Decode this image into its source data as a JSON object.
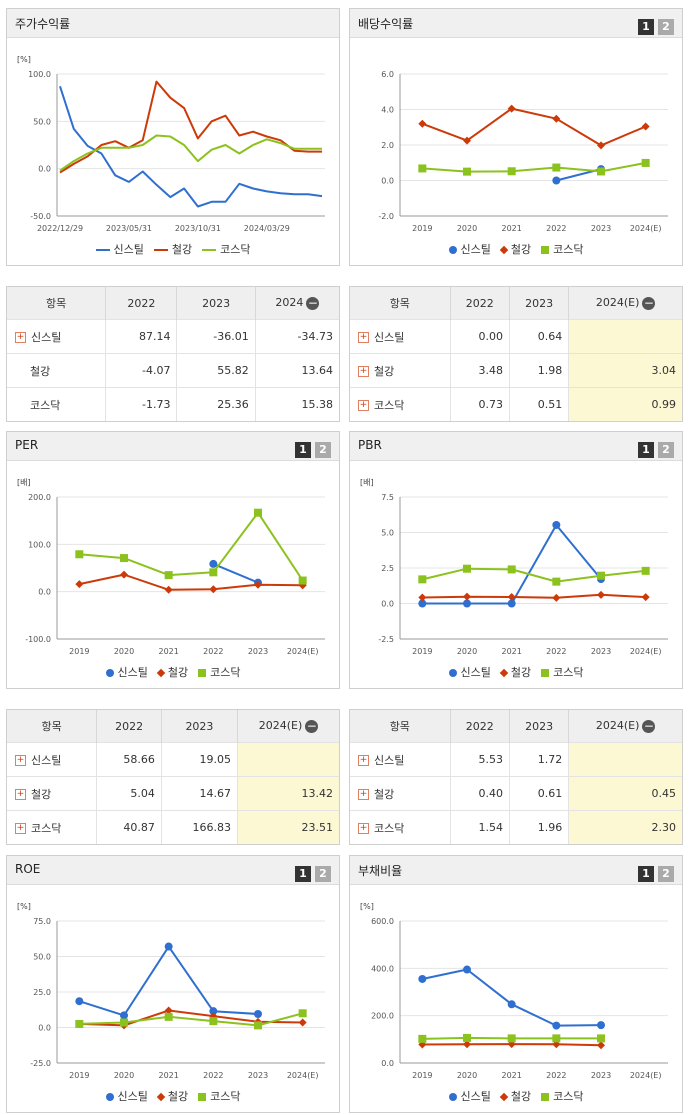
{
  "panels": {
    "return": {
      "title": "주가수익률",
      "unit": "[%]",
      "table": {
        "headers": [
          "항목",
          "2022",
          "2023",
          "2024"
        ],
        "rows": [
          {
            "name": "신스틸",
            "values": [
              "87.14",
              "-36.01",
              "-34.73"
            ]
          },
          {
            "name": "철강",
            "values": [
              "-4.07",
              "55.82",
              "13.64"
            ]
          },
          {
            "name": "코스닥",
            "values": [
              "-1.73",
              "25.36",
              "15.38"
            ]
          }
        ]
      }
    },
    "dividend": {
      "title": "배당수익률",
      "table": {
        "headers": [
          "항목",
          "2022",
          "2023",
          "2024(E)"
        ],
        "rows": [
          {
            "name": "신스틸",
            "values": [
              "0.00",
              "0.64",
              ""
            ]
          },
          {
            "name": "철강",
            "values": [
              "3.48",
              "1.98",
              "3.04"
            ]
          },
          {
            "name": "코스닥",
            "values": [
              "0.73",
              "0.51",
              "0.99"
            ]
          }
        ]
      }
    },
    "per": {
      "title": "PER",
      "unit": "[배]",
      "table": {
        "headers": [
          "항목",
          "2022",
          "2023",
          "2024(E)"
        ],
        "rows": [
          {
            "name": "신스틸",
            "values": [
              "58.66",
              "19.05",
              ""
            ]
          },
          {
            "name": "철강",
            "values": [
              "5.04",
              "14.67",
              "13.42"
            ]
          },
          {
            "name": "코스닥",
            "values": [
              "40.87",
              "166.83",
              "23.51"
            ]
          }
        ]
      }
    },
    "pbr": {
      "title": "PBR",
      "unit": "[배]",
      "table": {
        "headers": [
          "항목",
          "2022",
          "2023",
          "2024(E)"
        ],
        "rows": [
          {
            "name": "신스틸",
            "values": [
              "5.53",
              "1.72",
              ""
            ]
          },
          {
            "name": "철강",
            "values": [
              "0.40",
              "0.61",
              "0.45"
            ]
          },
          {
            "name": "코스닥",
            "values": [
              "1.54",
              "1.96",
              "2.30"
            ]
          }
        ]
      }
    },
    "roe": {
      "title": "ROE",
      "unit": "[%]"
    },
    "debt": {
      "title": "부채비율",
      "unit": "[%]"
    }
  },
  "buttons": {
    "one": "1",
    "two": "2"
  },
  "colors": {
    "신스틸": "#2f6fd0",
    "철강": "#cc3a0a",
    "코스닥": "#8bc21e"
  },
  "chart_data": [
    {
      "id": "return",
      "type": "line",
      "title": "주가수익률",
      "ylabel": "[%]",
      "ylim": [
        -50,
        100
      ],
      "yticks": [
        100.0,
        50.0,
        0.0,
        -50.0
      ],
      "x_tick_labels": [
        "2022/12/29",
        "2023/05/31",
        "2023/10/31",
        "2024/03/29"
      ],
      "x_tick_positions": [
        0,
        5,
        10,
        15
      ],
      "x_count": 20,
      "markers": "none",
      "series": [
        {
          "name": "신스틸",
          "values": [
            87,
            42,
            24,
            16,
            -7,
            -14,
            -3,
            -17,
            -30,
            -21,
            -40,
            -35,
            -35,
            -16,
            -21,
            -24,
            -26,
            -27,
            -27,
            -29
          ]
        },
        {
          "name": "철강",
          "values": [
            -4,
            5,
            13,
            25,
            29,
            22,
            30,
            92,
            75,
            64,
            32,
            50,
            56,
            35,
            39,
            34,
            30,
            19,
            18,
            18
          ]
        },
        {
          "name": "코스닥",
          "values": [
            -2,
            8,
            16,
            22,
            22,
            22,
            25,
            35,
            34,
            25,
            8,
            20,
            25,
            16,
            25,
            31,
            27,
            21,
            21,
            21
          ]
        }
      ],
      "legend": [
        "신스틸",
        "철강",
        "코스닥"
      ]
    },
    {
      "id": "dividend",
      "type": "line",
      "title": "배당수익률",
      "ylabel": "",
      "ylim": [
        -2,
        6
      ],
      "yticks": [
        6.0,
        4.0,
        2.0,
        0.0,
        -2.0
      ],
      "categories": [
        "2019",
        "2020",
        "2021",
        "2022",
        "2023",
        "2024(E)"
      ],
      "series": [
        {
          "name": "신스틸",
          "values": [
            null,
            null,
            null,
            0.0,
            0.64,
            null
          ]
        },
        {
          "name": "철강",
          "values": [
            3.2,
            2.25,
            4.05,
            3.48,
            1.98,
            3.04
          ]
        },
        {
          "name": "코스닥",
          "values": [
            0.68,
            0.5,
            0.52,
            0.73,
            0.51,
            0.99
          ]
        }
      ],
      "legend": [
        "신스틸",
        "철강",
        "코스닥"
      ]
    },
    {
      "id": "per",
      "type": "line",
      "title": "PER",
      "ylabel": "[배]",
      "ylim": [
        -100,
        200
      ],
      "yticks": [
        200.0,
        100.0,
        0.0,
        -100.0
      ],
      "categories": [
        "2019",
        "2020",
        "2021",
        "2022",
        "2023",
        "2024(E)"
      ],
      "series": [
        {
          "name": "신스틸",
          "values": [
            null,
            null,
            null,
            58.66,
            19.05,
            null
          ]
        },
        {
          "name": "철강",
          "values": [
            16,
            36,
            4,
            5.04,
            14.67,
            13.42
          ]
        },
        {
          "name": "코스닥",
          "values": [
            79,
            71,
            35,
            40.87,
            166.83,
            23.51
          ]
        }
      ],
      "legend": [
        "신스틸",
        "철강",
        "코스닥"
      ]
    },
    {
      "id": "pbr",
      "type": "line",
      "title": "PBR",
      "ylabel": "[배]",
      "ylim": [
        -2.5,
        7.5
      ],
      "yticks": [
        7.5,
        5.0,
        2.5,
        0.0,
        -2.5
      ],
      "categories": [
        "2019",
        "2020",
        "2021",
        "2022",
        "2023",
        "2024(E)"
      ],
      "series": [
        {
          "name": "신스틸",
          "values": [
            0.0,
            0.0,
            0.0,
            5.53,
            1.72,
            null
          ]
        },
        {
          "name": "철강",
          "values": [
            0.42,
            0.48,
            0.46,
            0.4,
            0.61,
            0.45
          ]
        },
        {
          "name": "코스닥",
          "values": [
            1.7,
            2.45,
            2.4,
            1.54,
            1.96,
            2.3
          ]
        }
      ],
      "legend": [
        "신스틸",
        "철강",
        "코스닥"
      ]
    },
    {
      "id": "roe",
      "type": "line",
      "title": "ROE",
      "ylabel": "[%]",
      "ylim": [
        -25,
        75
      ],
      "yticks": [
        75.0,
        50.0,
        25.0,
        0.0,
        -25.0
      ],
      "categories": [
        "2019",
        "2020",
        "2021",
        "2022",
        "2023",
        "2024(E)"
      ],
      "series": [
        {
          "name": "신스틸",
          "values": [
            18.5,
            8.5,
            57,
            11.5,
            9.5,
            null
          ]
        },
        {
          "name": "철강",
          "values": [
            2.5,
            1.5,
            12,
            8,
            4,
            3.5
          ]
        },
        {
          "name": "코스닥",
          "values": [
            2.5,
            3.5,
            7.5,
            4.5,
            1.5,
            10
          ]
        }
      ],
      "legend": [
        "신스틸",
        "철강",
        "코스닥"
      ]
    },
    {
      "id": "debt",
      "type": "line",
      "title": "부채비율",
      "ylabel": "[%]",
      "ylim": [
        0,
        600
      ],
      "yticks": [
        600.0,
        400.0,
        200.0,
        0.0
      ],
      "categories": [
        "2019",
        "2020",
        "2021",
        "2022",
        "2023",
        "2024(E)"
      ],
      "series": [
        {
          "name": "신스틸",
          "values": [
            355,
            395,
            248,
            158,
            160,
            null
          ]
        },
        {
          "name": "철강",
          "values": [
            78,
            79,
            80,
            79,
            75,
            null
          ]
        },
        {
          "name": "코스닥",
          "values": [
            102,
            106,
            104,
            104,
            104,
            null
          ]
        }
      ],
      "legend": [
        "신스틸",
        "철강",
        "코스닥"
      ]
    }
  ]
}
